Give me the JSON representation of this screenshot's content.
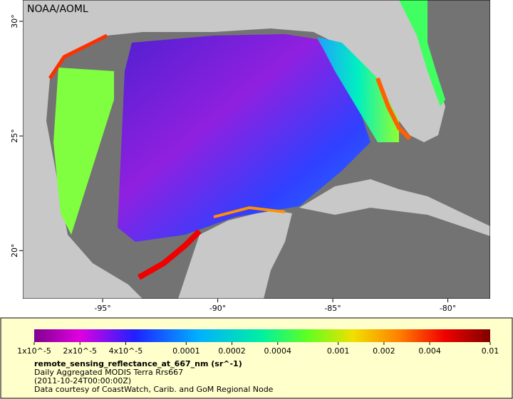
{
  "header": {
    "credit": "NOAA/AOML"
  },
  "map": {
    "xlim": [
      -98.47,
      -78.16
    ],
    "ylim": [
      17.9,
      30.93
    ],
    "xticks": [
      {
        "value": -95,
        "label": "-95°"
      },
      {
        "value": -90,
        "label": "-90°"
      },
      {
        "value": -85,
        "label": "-85°"
      },
      {
        "value": -80,
        "label": "-80°"
      }
    ],
    "yticks": [
      {
        "value": 20,
        "label": "20°"
      },
      {
        "value": 25,
        "label": "25°"
      },
      {
        "value": 30,
        "label": "30°"
      }
    ]
  },
  "colorbar": {
    "scale": "log",
    "lim": [
      1e-05,
      0.01
    ],
    "ticks": [
      {
        "value": 1e-05,
        "label": "1x10^-5"
      },
      {
        "value": 2e-05,
        "label": "2x10^-5"
      },
      {
        "value": 4e-05,
        "label": "4x10^-5"
      },
      0.0001,
      0.0002,
      0.0004,
      0.001,
      0.002,
      0.004,
      0.01
    ]
  },
  "legend": {
    "title": "remote_sensing_reflectance_at_667_nm (sr^-1)",
    "lines": [
      "Daily Aggregated MODIS Terra Rrs667",
      "(2011-10-24T00:00:00Z)",
      "Data courtesy of CoastWatch, Carib. and GoM Regional Node"
    ]
  }
}
